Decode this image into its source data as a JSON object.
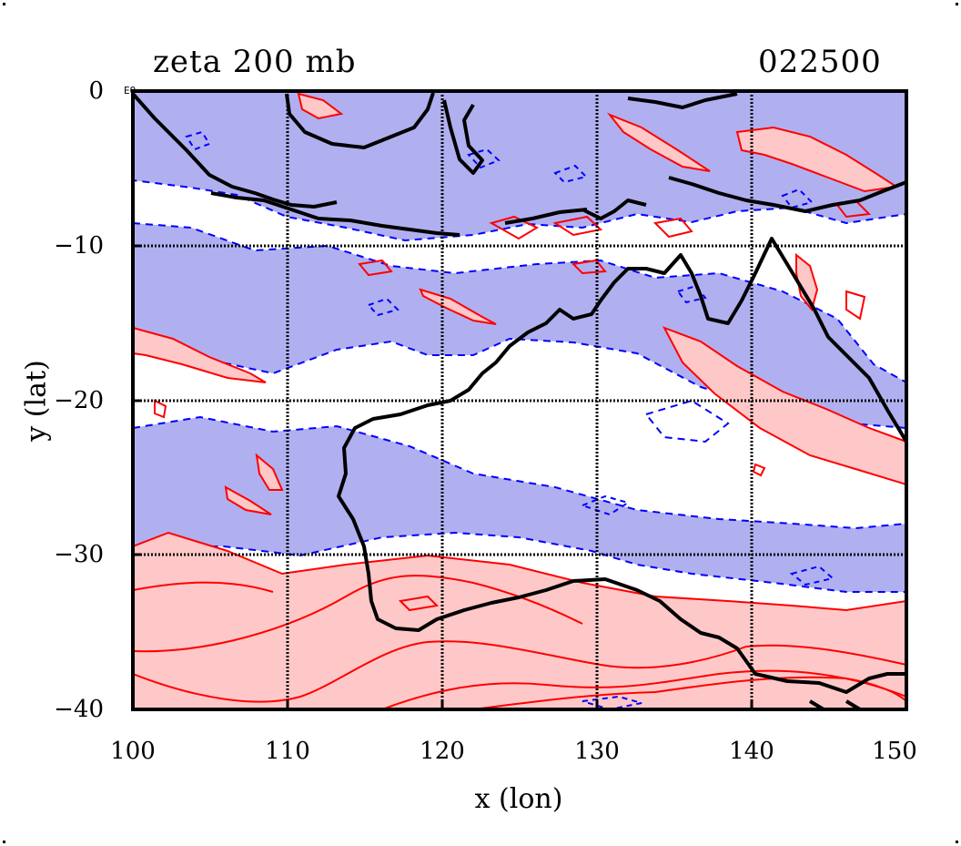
{
  "title": {
    "left": "zeta 200 mb",
    "right": "022500"
  },
  "axes": {
    "x_label": "x (lon)",
    "y_label": "y (lat)",
    "x_ticks": [
      "100",
      "110",
      "120",
      "130",
      "140",
      "150"
    ],
    "y_ticks": [
      "0",
      "−10",
      "−20",
      "−30",
      "−40"
    ],
    "y_top_suffix": "EQ",
    "xlim": [
      100,
      150
    ],
    "ylim": [
      -40,
      0
    ]
  },
  "map": {
    "region": "Australia / Maritime Continent",
    "field": "relative vorticity",
    "grid": true,
    "colors": {
      "positive_fill": "#ffc8c8",
      "positive_line": "#ff0000",
      "negative_fill": "#b0b0f0",
      "negative_line": "#0000ff",
      "coast": "#000000",
      "grid": "#000000"
    },
    "icons": [
      "coastline-outline",
      "positive-contour",
      "negative-contour"
    ]
  }
}
